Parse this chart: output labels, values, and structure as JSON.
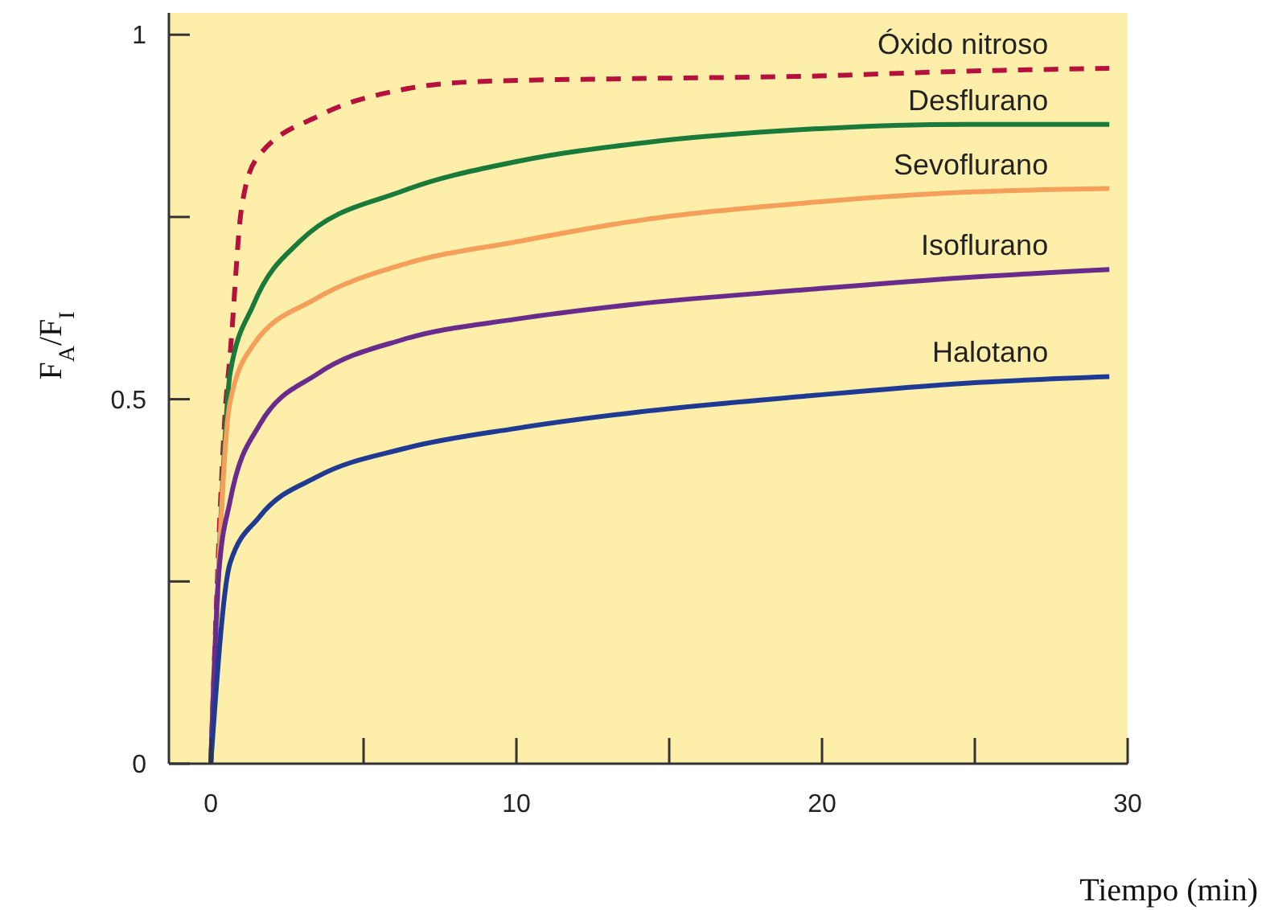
{
  "chart_data": {
    "type": "line",
    "xlabel": "Tiempo (min)",
    "ylabel": "F$_{A}$/F$_{I}$",
    "xlim": [
      -1.37,
      30
    ],
    "xticks": [
      0,
      {
        "value": 5,
        "label": null
      },
      10,
      {
        "value": 15,
        "label": null
      },
      20,
      {
        "value": 25,
        "label": null
      },
      30
    ],
    "ylim": [
      0,
      1.03
    ],
    "yticks": [
      0,
      {
        "value": 0.25,
        "label": null
      },
      0.5,
      {
        "value": 0.75,
        "label": null
      },
      1
    ],
    "series": [
      {
        "name": "Óxido nitroso",
        "color": "#b5113c",
        "line_style": "dashed",
        "x": [
          0,
          0.5,
          0.63,
          1.0,
          1.5,
          3.6,
          6.3,
          8.9,
          14.2,
          19.4,
          24.7,
          29.4
        ],
        "values": [
          0,
          0.5,
          0.56,
          0.76,
          0.83,
          0.89,
          0.925,
          0.936,
          0.94,
          0.943,
          0.95,
          0.954
        ]
      },
      {
        "name": "Desflurano",
        "color": "#1a7a3a",
        "line_style": "solid",
        "x": [
          0,
          0.3,
          0.63,
          1.4,
          2.9,
          6.3,
          10,
          14.2,
          19.4,
          24.7,
          29.4
        ],
        "values": [
          0,
          0.31,
          0.535,
          0.63,
          0.716,
          0.786,
          0.826,
          0.852,
          0.87,
          0.877,
          0.877
        ]
      },
      {
        "name": "Sevoflurano",
        "color": "#f5a05a",
        "line_style": "solid",
        "x": [
          0,
          0.63,
          1.4,
          3.4,
          6.3,
          10,
          13.8,
          19.4,
          24.7,
          29.4
        ],
        "values": [
          0,
          0.496,
          0.575,
          0.637,
          0.685,
          0.716,
          0.744,
          0.769,
          0.784,
          0.789
        ]
      },
      {
        "name": "Isoflurano",
        "color": "#6a2c8c",
        "line_style": "solid",
        "x": [
          0,
          0.26,
          0.63,
          1.6,
          3.5,
          6.3,
          10,
          13.8,
          19.4,
          24.7,
          29.4
        ],
        "values": [
          0,
          0.26,
          0.36,
          0.465,
          0.535,
          0.582,
          0.61,
          0.63,
          0.65,
          0.667,
          0.678
        ]
      },
      {
        "name": "Halotano",
        "color": "#1f3a93",
        "line_style": "solid",
        "x": [
          0,
          0.63,
          1.6,
          3.5,
          6.3,
          10,
          13.9,
          19.4,
          24.7,
          29.4
        ],
        "values": [
          0,
          0.275,
          0.339,
          0.394,
          0.432,
          0.46,
          0.482,
          0.504,
          0.522,
          0.531
        ]
      }
    ]
  }
}
